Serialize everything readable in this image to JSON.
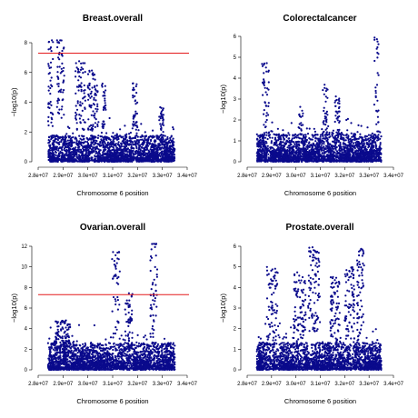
{
  "chart_data": [
    {
      "type": "scatter",
      "title": "Breast.overall",
      "xlabel": "Chromosome 6 position",
      "ylabel": "−log10(p)",
      "xlim": [
        28000000,
        34000000
      ],
      "ylim": [
        0,
        8
      ],
      "xticks": [
        "2.8e+07",
        "2.9e+07",
        "3.0e+07",
        "3.1e+07",
        "3.2e+07",
        "3.3e+07",
        "3.4e+07"
      ],
      "yticks": [
        "0",
        "2",
        "4",
        "6",
        "8"
      ],
      "threshold": 7.3,
      "threshold_color": "#e41a1c",
      "point_color": "#0a0a8c",
      "data_xrange": [
        28400000,
        33500000
      ],
      "peaks": [
        {
          "x": [
            28750000,
            29050000
          ],
          "y": [
            7.0,
            8.3
          ]
        },
        {
          "x": [
            28400000,
            28600000
          ],
          "y": [
            5.5,
            8.4
          ]
        },
        {
          "x": [
            29500000,
            29900000
          ],
          "y": [
            5.0,
            6.8
          ]
        },
        {
          "x": [
            30000000,
            30400000
          ],
          "y": [
            5.0,
            6.2
          ]
        },
        {
          "x": [
            30550000,
            30750000
          ],
          "y": [
            4.5,
            5.3
          ]
        },
        {
          "x": [
            31800000,
            32000000
          ],
          "y": [
            3.5,
            5.3
          ]
        },
        {
          "x": [
            32850000,
            33050000
          ],
          "y": [
            3.0,
            3.7
          ]
        }
      ]
    },
    {
      "type": "scatter",
      "title": "Colorectalcancer",
      "xlabel": "Chromosome 6 position",
      "ylabel": "−log10(p)",
      "xlim": [
        28000000,
        34000000
      ],
      "ylim": [
        0,
        6
      ],
      "xticks": [
        "2.8e+07",
        "2.9e+07",
        "3.0e+07",
        "3.1e+07",
        "3.2e+07",
        "3.3e+07",
        "3.4e+07"
      ],
      "yticks": [
        "0",
        "1",
        "2",
        "3",
        "4",
        "5",
        "6"
      ],
      "threshold": null,
      "point_color": "#0a0a8c",
      "data_xrange": [
        28400000,
        33500000
      ],
      "peaks": [
        {
          "x": [
            28600000,
            28900000
          ],
          "y": [
            3.0,
            4.8
          ]
        },
        {
          "x": [
            30100000,
            30300000
          ],
          "y": [
            2.0,
            3.0
          ]
        },
        {
          "x": [
            31100000,
            31300000
          ],
          "y": [
            2.5,
            3.7
          ]
        },
        {
          "x": [
            31600000,
            31800000
          ],
          "y": [
            2.5,
            3.2
          ]
        },
        {
          "x": [
            33200000,
            33400000
          ],
          "y": [
            3.5,
            6.0
          ]
        }
      ]
    },
    {
      "type": "scatter",
      "title": "Ovarian.overall",
      "xlabel": "Chromosome 6 position",
      "ylabel": "−log10(p)",
      "xlim": [
        28000000,
        34000000
      ],
      "ylim": [
        0,
        12
      ],
      "xticks": [
        "2.8e+07",
        "2.9e+07",
        "3.0e+07",
        "3.1e+07",
        "3.2e+07",
        "3.3e+07",
        "3.4e+07"
      ],
      "yticks": [
        "0",
        "2",
        "4",
        "6",
        "8",
        "10",
        "12"
      ],
      "threshold": 7.3,
      "threshold_color": "#e41a1c",
      "point_color": "#0a0a8c",
      "data_xrange": [
        28400000,
        33500000
      ],
      "peaks": [
        {
          "x": [
            30950000,
            31300000
          ],
          "y": [
            7.0,
            11.5
          ]
        },
        {
          "x": [
            31500000,
            31800000
          ],
          "y": [
            5.0,
            7.5
          ]
        },
        {
          "x": [
            32500000,
            32800000
          ],
          "y": [
            7.0,
            12.8
          ]
        },
        {
          "x": [
            28700000,
            29300000
          ],
          "y": [
            3.0,
            4.8
          ]
        }
      ]
    },
    {
      "type": "scatter",
      "title": "Prostate.overall",
      "xlabel": "Chromosome 6 position",
      "ylabel": "−log10(p)",
      "xlim": [
        28000000,
        34000000
      ],
      "ylim": [
        0,
        6
      ],
      "xticks": [
        "2.8e+07",
        "2.9e+07",
        "3.0e+07",
        "3.1e+07",
        "3.2e+07",
        "3.3e+07",
        "3.4e+07"
      ],
      "yticks": [
        "0",
        "1",
        "2",
        "3",
        "4",
        "5",
        "6"
      ],
      "threshold": null,
      "point_color": "#0a0a8c",
      "data_xrange": [
        28400000,
        33500000
      ],
      "peaks": [
        {
          "x": [
            28800000,
            29300000
          ],
          "y": [
            3.5,
            5.1
          ]
        },
        {
          "x": [
            29900000,
            30400000
          ],
          "y": [
            3.5,
            4.8
          ]
        },
        {
          "x": [
            30500000,
            31000000
          ],
          "y": [
            4.5,
            6.0
          ]
        },
        {
          "x": [
            31400000,
            31800000
          ],
          "y": [
            3.5,
            4.6
          ]
        },
        {
          "x": [
            32000000,
            32400000
          ],
          "y": [
            3.5,
            5.0
          ]
        },
        {
          "x": [
            32500000,
            32800000
          ],
          "y": [
            4.0,
            6.0
          ]
        }
      ]
    }
  ]
}
